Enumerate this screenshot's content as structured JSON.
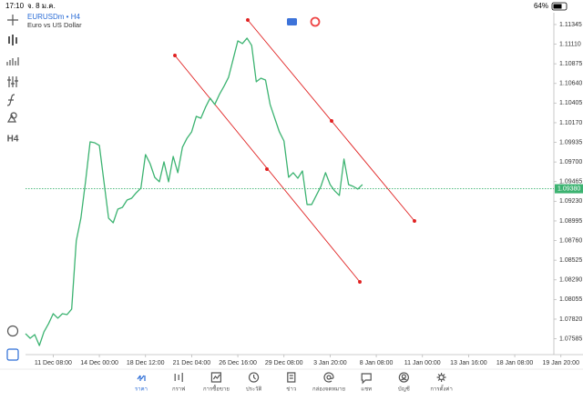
{
  "status_bar": {
    "time": "17:10",
    "date": "จ. 8 ม.ค.",
    "battery": "64%"
  },
  "toolbar": {
    "timeframe": "H4"
  },
  "chart_data": {
    "type": "line",
    "title": "EURUSDm • H4",
    "subtitle": "Euro vs US Dollar",
    "color": "#3cb371",
    "values": [
      1.07646,
      1.07591,
      1.07635,
      1.07504,
      1.07668,
      1.07766,
      1.07885,
      1.07831,
      1.07885,
      1.07874,
      1.0794,
      1.08756,
      1.09028,
      1.09463,
      1.09941,
      1.0993,
      1.09898,
      1.09463,
      1.09028,
      1.08973,
      1.09136,
      1.09158,
      1.09245,
      1.09267,
      1.09332,
      1.09387,
      1.09789,
      1.0968,
      1.09517,
      1.09463,
      1.09702,
      1.09463,
      1.09767,
      1.09572,
      1.09876,
      1.09985,
      1.10061,
      1.10246,
      1.10224,
      1.10355,
      1.10464,
      1.10388,
      1.10507,
      1.10605,
      1.10714,
      1.10932,
      1.11149,
      1.11117,
      1.11182,
      1.11095,
      1.1066,
      1.10703,
      1.10681,
      1.10388,
      1.10224,
      1.10061,
      1.09952,
      1.09517,
      1.09572,
      1.09506,
      1.09593,
      1.09191,
      1.09191,
      1.093,
      1.09408,
      1.09572,
      1.0943,
      1.09354,
      1.093,
      1.09735,
      1.0943,
      1.09408,
      1.09376,
      1.0943
    ],
    "xlim": [
      0,
      120
    ],
    "xticks": [
      {
        "value": 6,
        "label": "11 Dec 08:00"
      },
      {
        "value": 16,
        "label": "14 Dec 00:00"
      },
      {
        "value": 26,
        "label": "18 Dec 12:00"
      },
      {
        "value": 36,
        "label": "21 Dec 04:00"
      },
      {
        "value": 46,
        "label": "26 Dec 16:00"
      },
      {
        "value": 56,
        "label": "29 Dec 08:00"
      },
      {
        "value": 66,
        "label": "3 Jan 20:00"
      },
      {
        "value": 76,
        "label": "8 Jan 08:00"
      },
      {
        "value": 86,
        "label": "11 Jan 00:00"
      },
      {
        "value": 96,
        "label": "13 Jan 16:00"
      },
      {
        "value": 106,
        "label": "18 Jan 08:00"
      },
      {
        "value": 116,
        "label": "19 Jan 20:00"
      }
    ],
    "ylim": [
      1.07417,
      1.11486
    ],
    "yticks": [
      {
        "value": 1.11345,
        "label": "1.11345"
      },
      {
        "value": 1.1111,
        "label": "1.11110"
      },
      {
        "value": 1.10875,
        "label": "1.10875"
      },
      {
        "value": 1.1064,
        "label": "1.10640"
      },
      {
        "value": 1.10405,
        "label": "1.10405"
      },
      {
        "value": 1.1017,
        "label": "1.10170"
      },
      {
        "value": 1.09935,
        "label": "1.09935"
      },
      {
        "value": 1.097,
        "label": "1.09700"
      },
      {
        "value": 1.09465,
        "label": "1.09465"
      },
      {
        "value": 1.0923,
        "label": "1.09230"
      },
      {
        "value": 1.08995,
        "label": "1.08995"
      },
      {
        "value": 1.0876,
        "label": "1.08760"
      },
      {
        "value": 1.08525,
        "label": "1.08525"
      },
      {
        "value": 1.0829,
        "label": "1.08290"
      },
      {
        "value": 1.08055,
        "label": "1.08055"
      },
      {
        "value": 1.0782,
        "label": "1.07820"
      },
      {
        "value": 1.07585,
        "label": "1.07585"
      }
    ],
    "current_price": {
      "value": 1.0938,
      "label": "1.09380"
    }
  },
  "nav": {
    "items": [
      "ราคา",
      "กราฟ",
      "การซื้อขาย",
      "ประวัติ",
      "ข่าว",
      "กล่องจดหมาย",
      "แชท",
      "บัญชี",
      "การตั้งค่า"
    ]
  }
}
